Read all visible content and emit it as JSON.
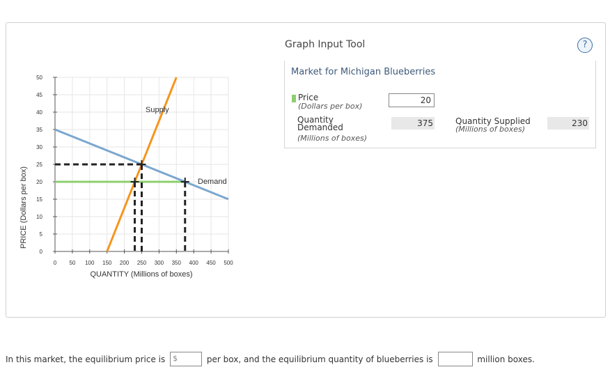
{
  "chart_data": {
    "type": "line",
    "ylabel": "PRICE (Dollars per box)",
    "xlabel": "QUANTITY (Millions of boxes)",
    "xlim": [
      0,
      500
    ],
    "ylim": [
      0,
      50
    ],
    "xticks": [
      0,
      50,
      100,
      150,
      200,
      250,
      300,
      350,
      400,
      450,
      500
    ],
    "yticks": [
      0,
      5,
      10,
      15,
      20,
      25,
      30,
      35,
      40,
      45,
      50
    ],
    "series": [
      {
        "name": "Supply",
        "color": "#f7941d",
        "x": [
          150,
          350
        ],
        "y": [
          0,
          50
        ]
      },
      {
        "name": "Demand",
        "color": "#7ba7cf",
        "x": [
          0,
          500
        ],
        "y": [
          35,
          15
        ]
      }
    ],
    "price_line": {
      "color": "#8dcf6f",
      "y": 20,
      "x": [
        0,
        375
      ]
    },
    "markers": [
      {
        "x": 250,
        "y": 25,
        "type": "equilibrium"
      },
      {
        "x": 230,
        "y": 20,
        "type": "quantity-supplied"
      },
      {
        "x": 375,
        "y": 20,
        "type": "quantity-demanded"
      }
    ]
  },
  "tool": {
    "title": "Graph Input Tool",
    "help_symbol": "?",
    "market_title": "Market for Michigan Blueberries",
    "price_label": "Price",
    "price_unit": "(Dollars per box)",
    "price_value": "20",
    "qd_label_line1": "Quantity",
    "qd_label_line2": "Demanded",
    "qd_unit": "(Millions of boxes)",
    "qd_value": "375",
    "qs_label": "Quantity Supplied",
    "qs_unit": "(Millions of boxes)",
    "qs_value": "230"
  },
  "question": {
    "part1": "In this market, the equilibrium price is",
    "currency_symbol": "$",
    "part2": "per box, and the equilibrium quantity of blueberries is",
    "part3": "million boxes."
  }
}
